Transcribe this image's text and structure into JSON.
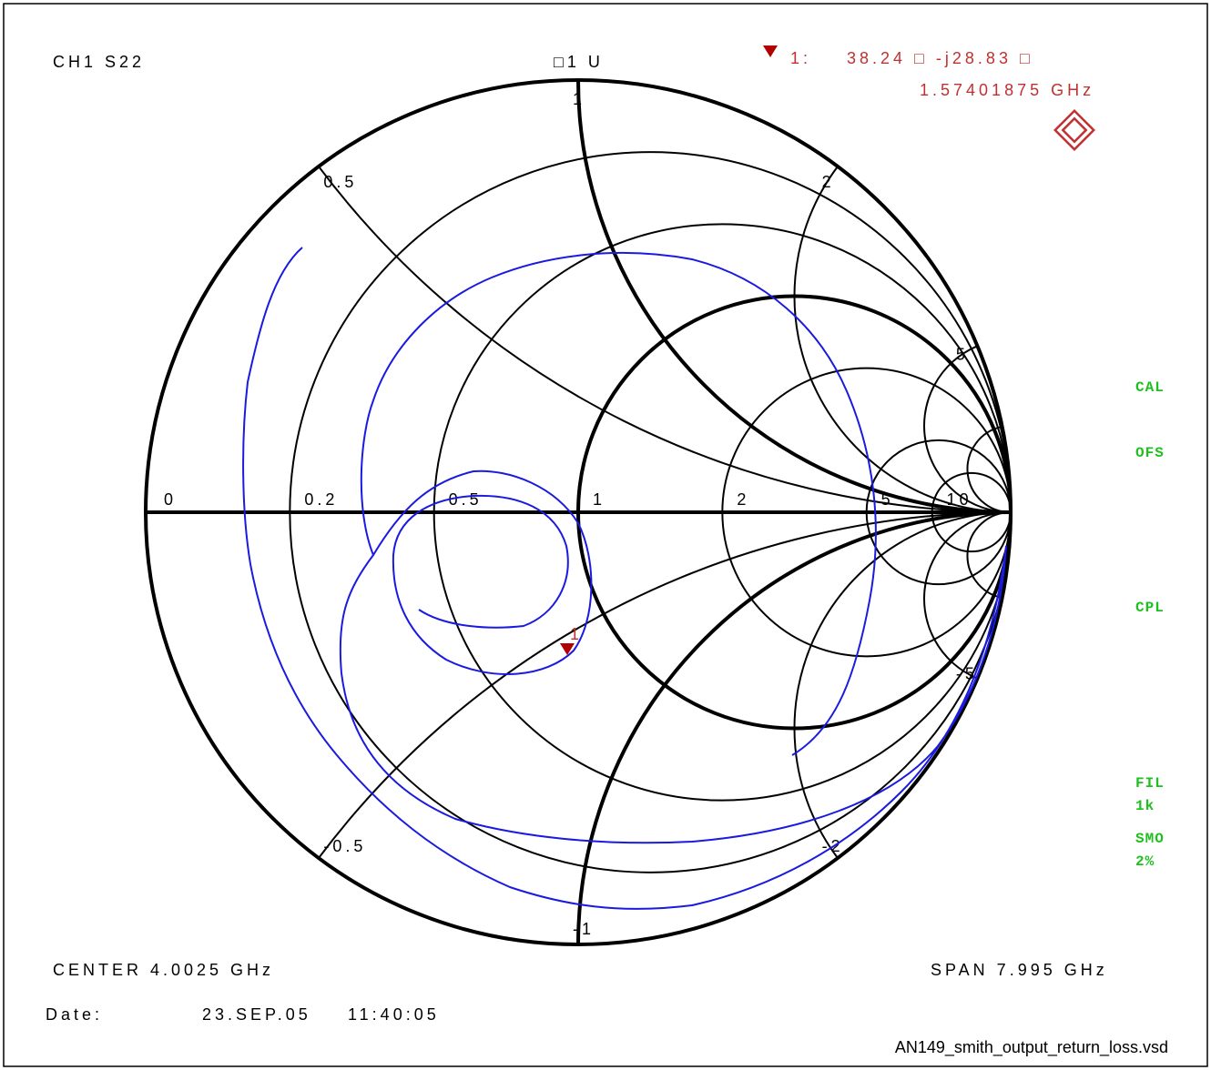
{
  "header": {
    "channel": "CH1 S22",
    "scale": "□1 U",
    "marker_id": "1:",
    "marker_value": "38.24 □ -j28.83 □",
    "marker_freq": "1.57401875 GHz"
  },
  "smith": {
    "resistance_labels": [
      "0",
      "0.2",
      "0.5",
      "1",
      "2",
      "5",
      "10"
    ],
    "reactance_labels": [
      "0.5",
      "1",
      "2",
      "5",
      "-0.5",
      "-1",
      "-2",
      "-5"
    ],
    "marker_label": "1"
  },
  "status": [
    "CAL",
    "OFS",
    "CPL",
    "FIL",
    "1k",
    "SMO",
    "2%"
  ],
  "footer": {
    "center": "CENTER 4.0025 GHz",
    "span": "SPAN 7.995 GHz",
    "date_label": "Date:",
    "date": "23.SEP.05",
    "time": "11:40:05",
    "file": "AN149_smith_output_return_loss.vsd"
  }
}
